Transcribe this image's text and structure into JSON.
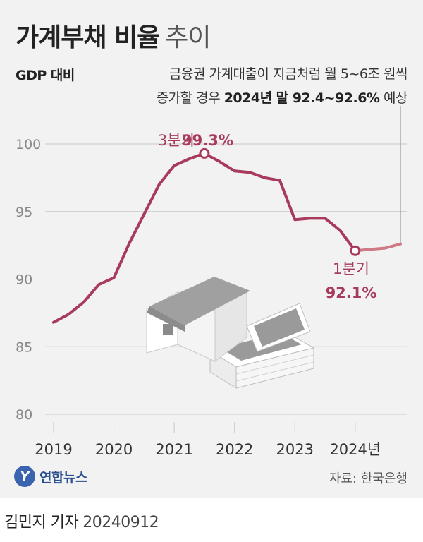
{
  "header": {
    "title_bold": "가계부채 비율",
    "title_light": "추이",
    "subtitle": "GDP 대비",
    "note_line1": "금융권 가계대출이 지금처럼 월 5~6조 원씩",
    "note_line2_prefix": "증가할 경우",
    "note_line2_bold": "2024년 말 92.4~92.6%",
    "note_line2_suffix": "예상"
  },
  "annotations": {
    "peak_label": "3분기",
    "peak_value": "99.3%",
    "latest_label": "1분기",
    "latest_value": "92.1%"
  },
  "footer": {
    "logo_mark": "Y",
    "logo_text": "연합뉴스",
    "source": "자료: 한국은행",
    "reporter": "김민지 기자",
    "date": "20240912"
  },
  "colors": {
    "line": "#a83a5c",
    "projection": "#d07a85",
    "grid": "#c8c8c8",
    "tick": "#888888",
    "background": "#f2f2f2"
  },
  "chart_data": {
    "type": "line",
    "title": "가계부채 비율 추이",
    "ylabel": "GDP 대비 (%)",
    "xlabel": "",
    "ylim": [
      80,
      100
    ],
    "yticks": [
      80,
      85,
      90,
      95,
      100
    ],
    "xtick_labels": [
      "2019",
      "2020",
      "2021",
      "2022",
      "2023",
      "2024년"
    ],
    "x_start_year": 2019,
    "x_end_year": 2024.75,
    "series": [
      {
        "name": "가계부채 비율",
        "x": [
          2019.0,
          2019.25,
          2019.5,
          2019.75,
          2020.0,
          2020.25,
          2020.5,
          2020.75,
          2021.0,
          2021.25,
          2021.5,
          2021.75,
          2022.0,
          2022.25,
          2022.5,
          2022.75,
          2023.0,
          2023.25,
          2023.5,
          2023.75,
          2024.0
        ],
        "values": [
          86.8,
          87.4,
          88.3,
          89.6,
          90.1,
          92.6,
          94.8,
          97.0,
          98.4,
          98.9,
          99.3,
          98.7,
          98.0,
          97.9,
          97.5,
          97.3,
          94.4,
          94.5,
          94.5,
          93.6,
          92.1
        ]
      },
      {
        "name": "전망",
        "x": [
          2024.0,
          2024.5,
          2024.75
        ],
        "values": [
          92.1,
          92.3,
          92.6
        ]
      }
    ]
  }
}
